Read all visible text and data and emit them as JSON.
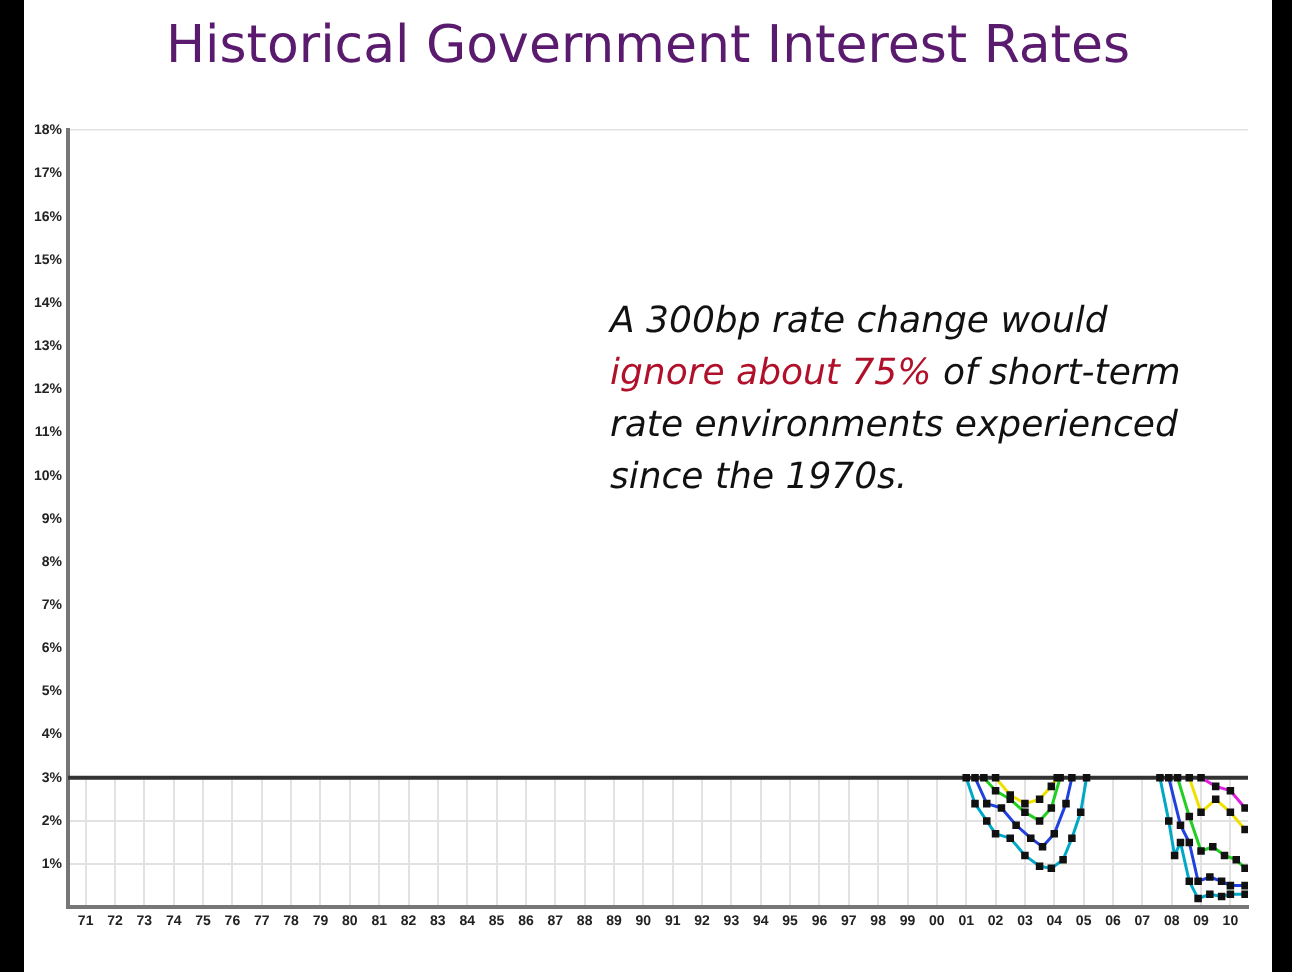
{
  "chart_data": {
    "type": "line",
    "title": "Historical Government Interest Rates",
    "annotations": [
      "A 300bp rate change would",
      "ignore about 75%",
      "of short-term rate environments experienced since the 1970s."
    ],
    "xlim": [
      1970.4,
      2010.6
    ],
    "xticks": [
      {
        "value": 1971,
        "label": "71"
      },
      {
        "value": 1972,
        "label": "72"
      },
      {
        "value": 1973,
        "label": "73"
      },
      {
        "value": 1974,
        "label": "74"
      },
      {
        "value": 1975,
        "label": "75"
      },
      {
        "value": 1976,
        "label": "76"
      },
      {
        "value": 1977,
        "label": "77"
      },
      {
        "value": 1978,
        "label": "78"
      },
      {
        "value": 1979,
        "label": "79"
      },
      {
        "value": 1980,
        "label": "80"
      },
      {
        "value": 1981,
        "label": "81"
      },
      {
        "value": 1982,
        "label": "82"
      },
      {
        "value": 1983,
        "label": "83"
      },
      {
        "value": 1984,
        "label": "84"
      },
      {
        "value": 1985,
        "label": "85"
      },
      {
        "value": 1986,
        "label": "86"
      },
      {
        "value": 1987,
        "label": "87"
      },
      {
        "value": 1988,
        "label": "88"
      },
      {
        "value": 1989,
        "label": "89"
      },
      {
        "value": 1990,
        "label": "90"
      },
      {
        "value": 1991,
        "label": "91"
      },
      {
        "value": 1992,
        "label": "92"
      },
      {
        "value": 1993,
        "label": "93"
      },
      {
        "value": 1994,
        "label": "94"
      },
      {
        "value": 1995,
        "label": "95"
      },
      {
        "value": 1996,
        "label": "96"
      },
      {
        "value": 1997,
        "label": "97"
      },
      {
        "value": 1998,
        "label": "98"
      },
      {
        "value": 1999,
        "label": "99"
      },
      {
        "value": 2000,
        "label": "00"
      },
      {
        "value": 2001,
        "label": "01"
      },
      {
        "value": 2002,
        "label": "02"
      },
      {
        "value": 2003,
        "label": "03"
      },
      {
        "value": 2004,
        "label": "04"
      },
      {
        "value": 2005,
        "label": "05"
      },
      {
        "value": 2006,
        "label": "06"
      },
      {
        "value": 2007,
        "label": "07"
      },
      {
        "value": 2008,
        "label": "08"
      },
      {
        "value": 2009,
        "label": "09"
      },
      {
        "value": 2010,
        "label": "10"
      }
    ],
    "ylim": [
      0,
      18
    ],
    "yticks": [
      {
        "value": 0,
        "label": null
      },
      {
        "value": 1,
        "label": "1%"
      },
      {
        "value": 2,
        "label": "2%"
      },
      {
        "value": 3,
        "label": "3%"
      },
      {
        "value": 4,
        "label": "4%"
      },
      {
        "value": 5,
        "label": "5%"
      },
      {
        "value": 6,
        "label": "6%"
      },
      {
        "value": 7,
        "label": "7%"
      },
      {
        "value": 8,
        "label": "8%"
      },
      {
        "value": 9,
        "label": "9%"
      },
      {
        "value": 10,
        "label": "10%"
      },
      {
        "value": 11,
        "label": "11%"
      },
      {
        "value": 12,
        "label": "12%"
      },
      {
        "value": 13,
        "label": "13%"
      },
      {
        "value": 14,
        "label": "14%"
      },
      {
        "value": 15,
        "label": "15%"
      },
      {
        "value": 16,
        "label": "16%"
      },
      {
        "value": 17,
        "label": "17%"
      },
      {
        "value": 18,
        "label": "18%"
      }
    ],
    "grid": true,
    "marker": "square",
    "line_style": "solid",
    "bands": [
      {
        "axis": "y",
        "from": 3,
        "to": 18,
        "color": "#ffffff"
      }
    ],
    "ref_lines": [
      {
        "axis": "y",
        "value": 3,
        "color": "#333333"
      }
    ],
    "series": [
      {
        "color": "#00a8c8",
        "x": [
          2001.0,
          2001.3,
          2001.7,
          2002.0,
          2002.5,
          2003.0,
          2003.5,
          2003.9,
          2004.3,
          2004.6,
          2004.9,
          2005.1,
          2006.0,
          2007.6,
          2007.9,
          2008.1,
          2008.3,
          2008.6,
          2008.9,
          2009.3,
          2009.7,
          2010.0,
          2010.5
        ],
        "values": [
          3.0,
          2.4,
          2.0,
          1.7,
          1.6,
          1.2,
          0.95,
          0.9,
          1.1,
          1.6,
          2.2,
          3.0,
          null,
          3.0,
          2.0,
          1.2,
          1.5,
          0.6,
          0.2,
          0.3,
          0.25,
          0.3,
          0.3
        ]
      },
      {
        "color": "#2040e0",
        "x": [
          2001.3,
          2001.7,
          2002.2,
          2002.7,
          2003.2,
          2003.6,
          2004.0,
          2004.4,
          2004.6,
          2006.0,
          2007.9,
          2008.3,
          2008.6,
          2008.9,
          2009.3,
          2009.7,
          2010.0,
          2010.5
        ],
        "values": [
          3.0,
          2.4,
          2.3,
          1.9,
          1.6,
          1.4,
          1.7,
          2.4,
          3.0,
          null,
          3.0,
          1.9,
          1.5,
          0.6,
          0.7,
          0.6,
          0.5,
          0.5
        ]
      },
      {
        "color": "#20d020",
        "x": [
          2001.6,
          2002.0,
          2002.5,
          2003.0,
          2003.5,
          2003.9,
          2004.2,
          2006.0,
          2008.2,
          2008.6,
          2009.0,
          2009.4,
          2009.8,
          2010.2,
          2010.5
        ],
        "values": [
          3.0,
          2.7,
          2.5,
          2.2,
          2.0,
          2.3,
          3.0,
          null,
          3.0,
          2.1,
          1.3,
          1.4,
          1.2,
          1.1,
          0.9
        ]
      },
      {
        "color": "#f0e000",
        "x": [
          2002.0,
          2002.5,
          2003.0,
          2003.5,
          2003.9,
          2004.1,
          2006.0,
          2008.6,
          2009.0,
          2009.5,
          2010.0,
          2010.5
        ],
        "values": [
          3.0,
          2.6,
          2.4,
          2.5,
          2.8,
          3.0,
          null,
          3.0,
          2.2,
          2.5,
          2.2,
          1.8
        ]
      },
      {
        "color": "#e020e0",
        "x": [
          2009.0,
          2009.5,
          2010.0,
          2010.5
        ],
        "values": [
          3.0,
          2.8,
          2.7,
          2.3
        ]
      }
    ]
  }
}
